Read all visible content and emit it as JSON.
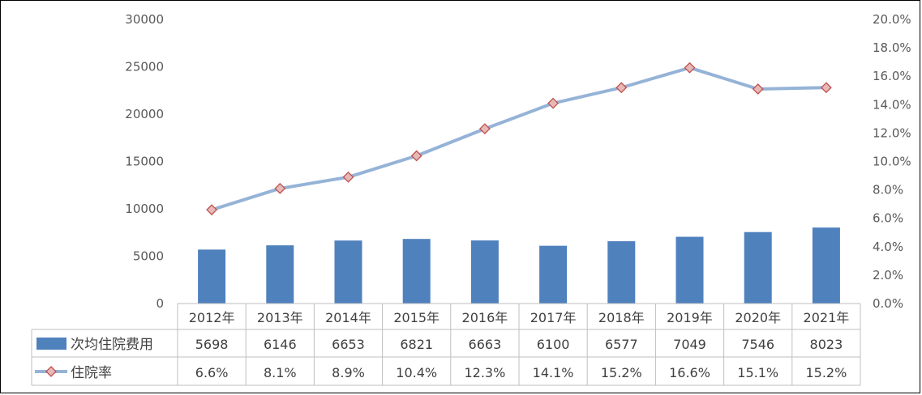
{
  "chart_data": {
    "type": "bar+line",
    "categories": [
      "2012年",
      "2013年",
      "2014年",
      "2015年",
      "2016年",
      "2017年",
      "2018年",
      "2019年",
      "2020年",
      "2021年"
    ],
    "series": [
      {
        "name": "次均住院费用",
        "type": "bar",
        "axis": "left",
        "values": [
          5698,
          6146,
          6653,
          6821,
          6663,
          6100,
          6577,
          7049,
          7546,
          8023
        ],
        "labels": [
          "5698",
          "6146",
          "6653",
          "6821",
          "6663",
          "6100",
          "6577",
          "7049",
          "7546",
          "8023"
        ],
        "color": "#4f81bd"
      },
      {
        "name": "住院率",
        "type": "line",
        "axis": "right",
        "values": [
          6.6,
          8.1,
          8.9,
          10.4,
          12.3,
          14.1,
          15.2,
          16.6,
          15.1,
          15.2
        ],
        "labels": [
          "6.6%",
          "8.1%",
          "8.9%",
          "10.4%",
          "12.3%",
          "14.1%",
          "15.2%",
          "16.6%",
          "15.1%",
          "15.2%"
        ],
        "color": "#95b3d7",
        "marker_fill": "#e6b9b8",
        "marker_stroke": "#c0504d"
      }
    ],
    "y_left": {
      "ylim": [
        0,
        30000
      ],
      "ticks": [
        "0",
        "5000",
        "10000",
        "15000",
        "20000",
        "25000",
        "30000"
      ]
    },
    "y_right": {
      "ylim": [
        0,
        20
      ],
      "ticks": [
        "0.0%",
        "2.0%",
        "4.0%",
        "6.0%",
        "8.0%",
        "10.0%",
        "12.0%",
        "14.0%",
        "16.0%",
        "18.0%",
        "20.0%"
      ]
    },
    "grid": false,
    "legend": "data-table-left",
    "data_table": true
  }
}
